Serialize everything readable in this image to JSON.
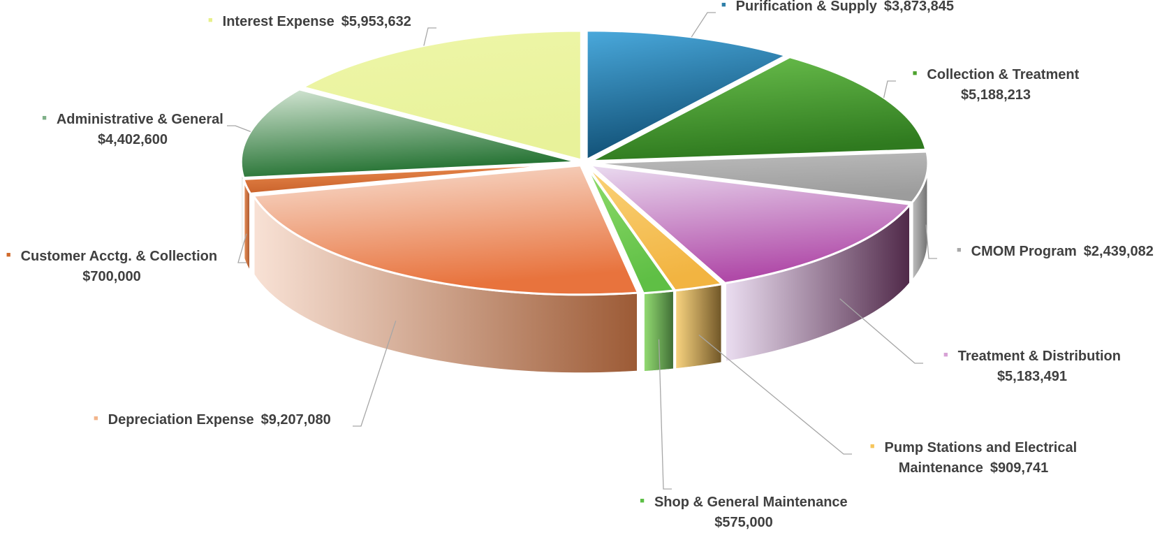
{
  "chart_data": {
    "type": "pie",
    "variant": "3d-exploded",
    "title": "",
    "legend": "none",
    "slices": [
      {
        "label": "Purification & Supply",
        "value": 3873845,
        "value_label": "$3,873,845",
        "color": "#2e8fbf",
        "top": "#4aa9dc",
        "bottom": "#0f4d72",
        "side": "#1d4a66"
      },
      {
        "label": "Collection & Treatment",
        "value": 5188213,
        "value_label": "$5,188,213",
        "color": "#52a635",
        "top": "#6cc14e",
        "bottom": "#2f7a1f",
        "side": "#37661f"
      },
      {
        "label": "CMOM Program",
        "value": 2439082,
        "value_label": "$2,439,082",
        "color": "#b0b0b0",
        "top": "#bdbdbd",
        "bottom": "#9c9c9c",
        "side": "#6e6e6e"
      },
      {
        "label": "Treatment & Distribution",
        "value": 5183491,
        "value_label": "$5,183,491",
        "color": "#c77fc9",
        "top": "#eadcf0",
        "bottom": "#b04aa8",
        "side": "#4f2848"
      },
      {
        "label": "Pump Stations and Electrical Maintenance",
        "value": 909741,
        "value_label": "$909,741",
        "color": "#f8c35f",
        "top": "#fad37a",
        "bottom": "#f2b441",
        "side": "#6e5426"
      },
      {
        "label": "Shop & General Maintenance",
        "value": 575000,
        "value_label": "$575,000",
        "color": "#7cd160",
        "top": "#8fdc6c",
        "bottom": "#5fbf45",
        "side": "#3e6b34"
      },
      {
        "label": "Depreciation Expense",
        "value": 9207080,
        "value_label": "$9,207,080",
        "color": "#ee9a6a",
        "top": "#f8e0d3",
        "bottom": "#e8733d",
        "side": "#9c5a35"
      },
      {
        "label": "Customer Acctg. & Collection",
        "value": 700000,
        "value_label": "$700,000",
        "color": "#e07a3a",
        "top": "#ee8f52",
        "bottom": "#c8612a",
        "side": "#a2532c"
      },
      {
        "label": "Administrative & General",
        "value": 4402600,
        "value_label": "$4,402,600",
        "color": "#5a9c62",
        "top": "#d6e7d6",
        "bottom": "#247232",
        "side": "#2d5a30"
      },
      {
        "label": "Interest Expense",
        "value": 5953632,
        "value_label": "$5,953,632",
        "color": "#ecf4a2",
        "top": "#eef6a8",
        "bottom": "#e8f29a",
        "side": "#b7bf6a"
      }
    ]
  },
  "labels": {
    "purification": {
      "name": "Purification & Supply",
      "value": "$3,873,845"
    },
    "collection": {
      "name": "Collection & Treatment",
      "value": "$5,188,213"
    },
    "cmom": {
      "name": "CMOM Program",
      "value": "$2,439,082"
    },
    "treatment": {
      "name": "Treatment & Distribution",
      "value": "$5,183,491"
    },
    "pump_line1": "Pump Stations and Electrical",
    "pump_line2": "Maintenance",
    "pump_value": "$909,741",
    "shop": {
      "name": "Shop & General Maintenance",
      "value": "$575,000"
    },
    "depreciation": {
      "name": "Depreciation Expense",
      "value": "$9,207,080"
    },
    "customer": {
      "name": "Customer Acctg. & Collection",
      "value": "$700,000"
    },
    "admin": {
      "name": "Administrative & General",
      "value": "$4,402,600"
    },
    "interest": {
      "name": "Interest Expense",
      "value": "$5,953,632"
    },
    "marker_colors": {
      "purification": "#2e7fa8",
      "collection": "#4ea32f",
      "cmom": "#a8a8a8",
      "treatment": "#d7a1d5",
      "pump": "#f6c55a",
      "shop": "#5cbf45",
      "depreciation": "#f2b48b",
      "customer": "#d06a2c",
      "admin": "#7fb088",
      "interest": "#e8f08a"
    },
    "leader_color": "#a6a6a6"
  }
}
